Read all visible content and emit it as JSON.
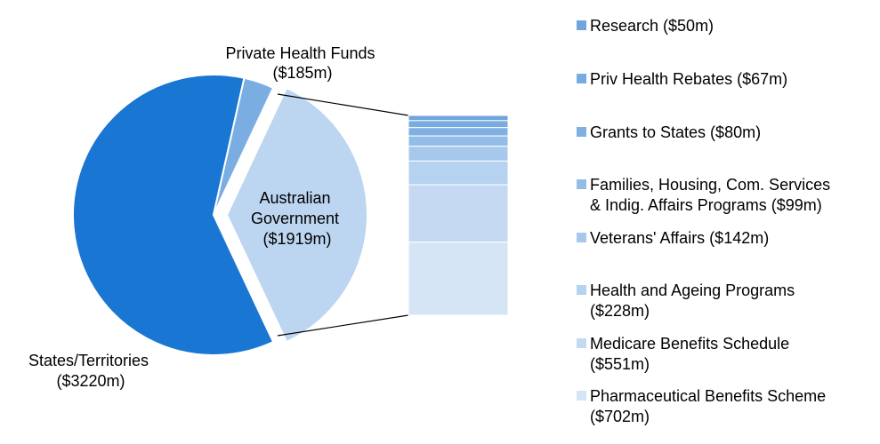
{
  "chart_data": {
    "type": "pie",
    "subtype": "bar-of-pie",
    "pie": [
      {
        "label": "States/Territories",
        "value_label": "($3220m)",
        "value": 3220,
        "color": "#1976D2"
      },
      {
        "label": "Private Health Funds",
        "value_label": "($185m)",
        "value": 185,
        "color": "#7AAEE2"
      },
      {
        "label": "Australian Government",
        "value_label": "($1919m)",
        "value": 1919,
        "color": "#BCD5F0"
      }
    ],
    "breakdown_of": "Australian Government",
    "breakdown": [
      {
        "label": "Research ($50m)",
        "value": 50,
        "color": "#6FA4DC"
      },
      {
        "label": "Priv Health Rebates ($67m)",
        "value": 67,
        "color": "#78ABE0"
      },
      {
        "label": "Grants to States ($80m)",
        "value": 80,
        "color": "#80B0E2"
      },
      {
        "label": "Families, Housing, Com. Services\n& Indig. Affairs Programs ($99m)",
        "value": 99,
        "color": "#93BCE6"
      },
      {
        "label": "Veterans' Affairs ($142m)",
        "value": 142,
        "color": "#A6C8EC"
      },
      {
        "label": "Health and Ageing Programs\n($228m)",
        "value": 228,
        "color": "#B5D2F0"
      },
      {
        "label": "Medicare Benefits Schedule\n($551m)",
        "value": 551,
        "color": "#C5DAF2"
      },
      {
        "label": "Pharmaceutical Benefits Scheme\n($702m)",
        "value": 702,
        "color": "#D6E5F6"
      }
    ],
    "legend_position": "right"
  }
}
